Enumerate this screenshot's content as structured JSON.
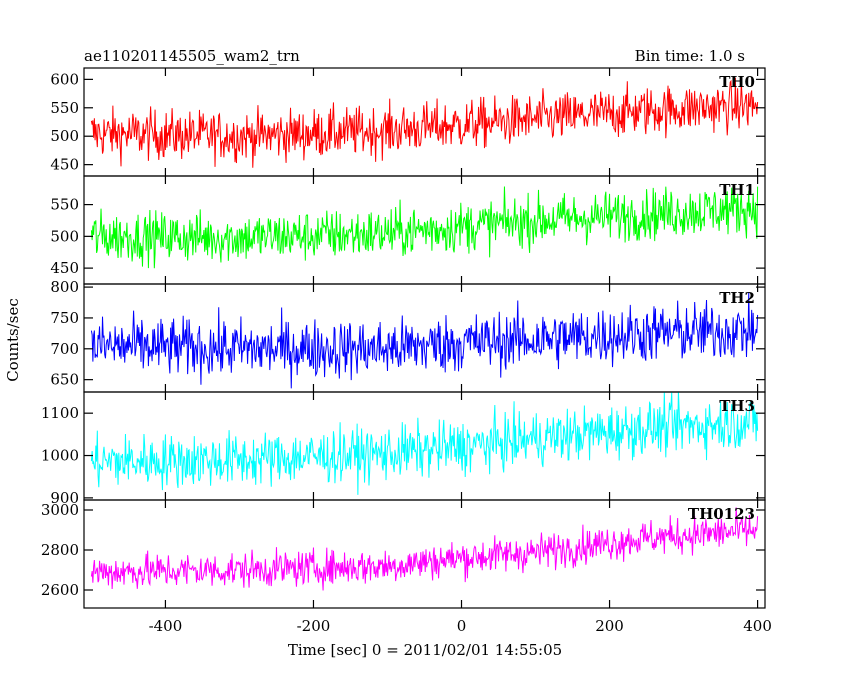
{
  "header": {
    "title": "ae110201145505_wam2_trn",
    "bin_time": "Bin time: 1.0 s"
  },
  "chart_data": {
    "type": "line",
    "xlabel": "Time [sec] 0 = 2011/02/01 14:55:05",
    "ylabel": "Counts/sec",
    "xlim": [
      -510,
      410
    ],
    "x_ticks": [
      -400,
      -200,
      0,
      200,
      400
    ],
    "panels": [
      {
        "name": "TH0",
        "color": "#ff0000",
        "ylim": [
          430,
          620
        ],
        "y_ticks": [
          450,
          500,
          550,
          600
        ],
        "trend": {
          "x": [
            -500,
            -300,
            -100,
            0,
            100,
            250,
            400
          ],
          "y": [
            505,
            500,
            510,
            520,
            530,
            545,
            555
          ]
        },
        "noise": 22
      },
      {
        "name": "TH1",
        "color": "#00ff00",
        "ylim": [
          425,
          595
        ],
        "y_ticks": [
          450,
          500,
          550
        ],
        "trend": {
          "x": [
            -500,
            -300,
            -100,
            0,
            100,
            250,
            400
          ],
          "y": [
            500,
            498,
            505,
            515,
            525,
            535,
            545
          ]
        },
        "noise": 20
      },
      {
        "name": "TH2",
        "color": "#0000ff",
        "ylim": [
          630,
          805
        ],
        "y_ticks": [
          650,
          700,
          750,
          800
        ],
        "trend": {
          "x": [
            -500,
            -300,
            -100,
            0,
            100,
            250,
            400
          ],
          "y": [
            705,
            700,
            700,
            710,
            715,
            725,
            730
          ]
        },
        "noise": 24
      },
      {
        "name": "TH3",
        "color": "#00ffff",
        "ylim": [
          895,
          1150
        ],
        "y_ticks": [
          900,
          1000,
          1100
        ],
        "trend": {
          "x": [
            -500,
            -300,
            -100,
            0,
            100,
            250,
            400
          ],
          "y": [
            985,
            990,
            1005,
            1020,
            1040,
            1065,
            1080
          ]
        },
        "noise": 32
      },
      {
        "name": "TH0123",
        "color": "#ff00ff",
        "ylim": [
          2510,
          3050
        ],
        "y_ticks": [
          2600,
          2800,
          3000
        ],
        "trend": {
          "x": [
            -500,
            -300,
            -100,
            0,
            100,
            250,
            400
          ],
          "y": [
            2690,
            2700,
            2720,
            2760,
            2790,
            2860,
            2900
          ]
        },
        "noise": 45
      }
    ]
  }
}
